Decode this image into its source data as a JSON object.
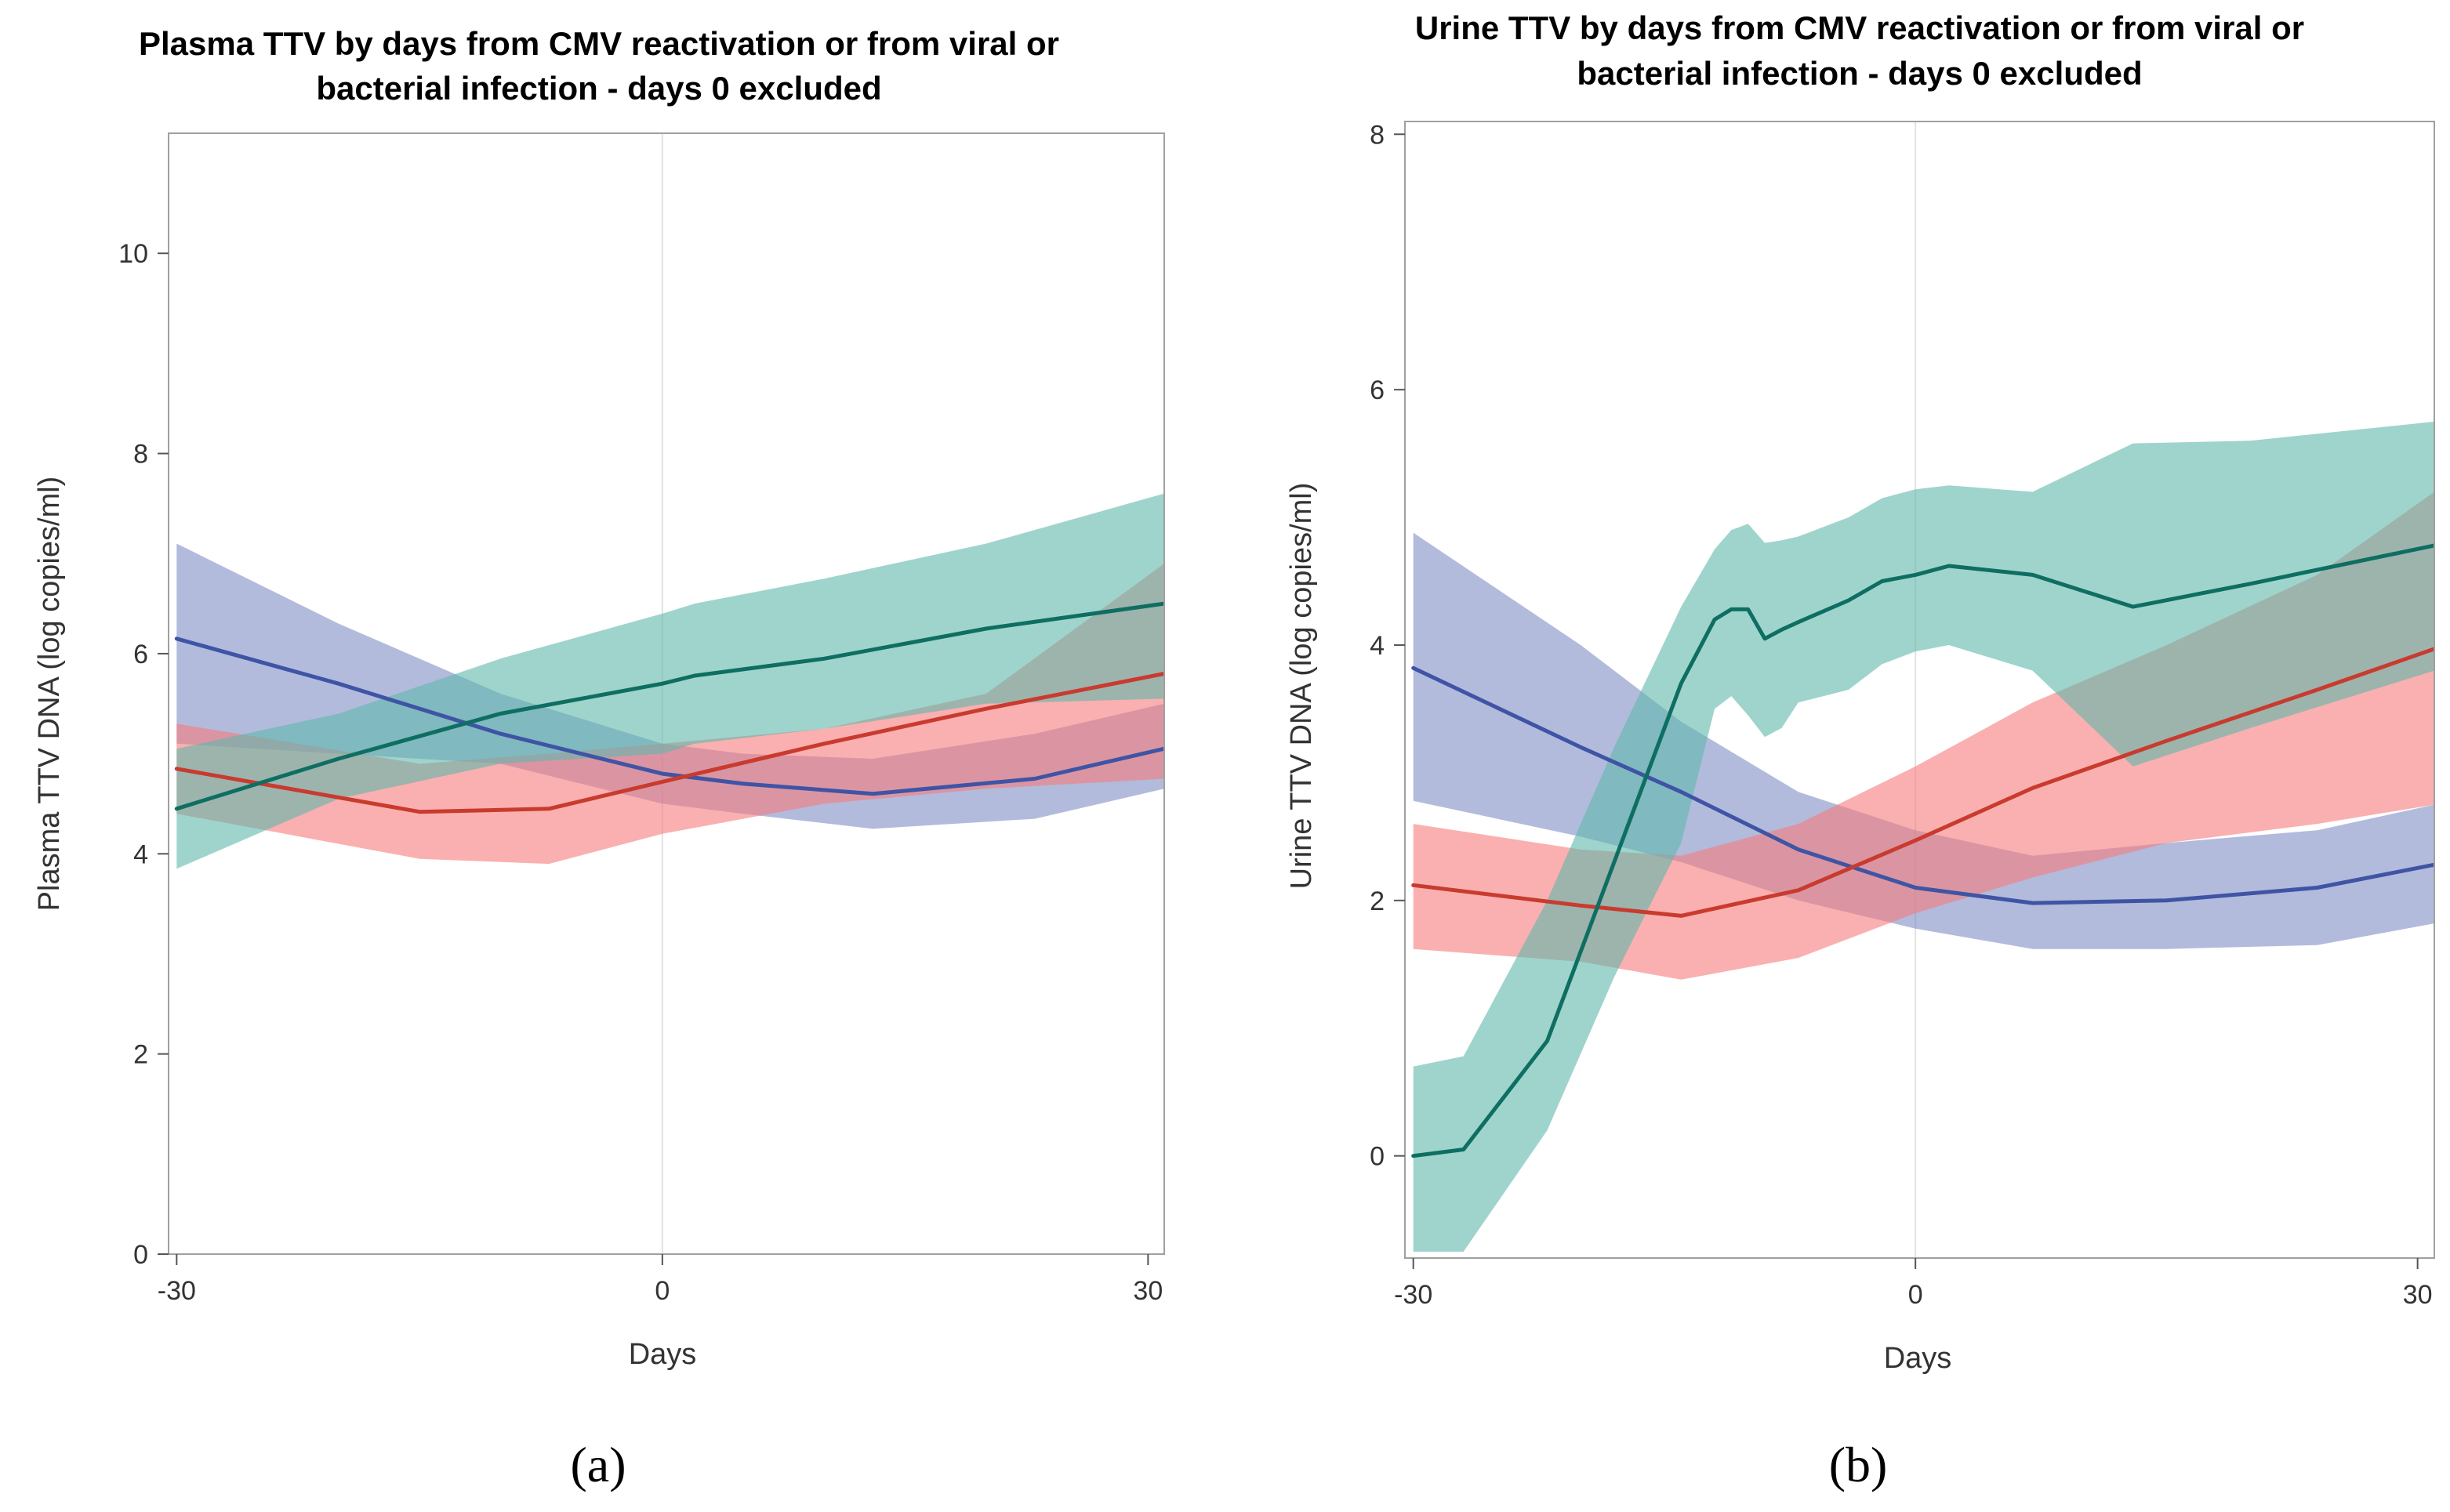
{
  "chart_data": [
    {
      "type": "line",
      "panel_label": "(a)",
      "title_line1": "Plasma TTV by days from CMV reactivation or from viral or",
      "title_line2": "bacterial infection - days 0 excluded",
      "xlabel": "Days",
      "ylabel": "Plasma TTV DNA (log copies/ml)",
      "xlim": [
        -30.5,
        31
      ],
      "ylim": [
        0,
        11.2
      ],
      "xticks": [
        -30,
        0,
        30
      ],
      "yticks": [
        0,
        2,
        4,
        6,
        8,
        10
      ],
      "reference_line_x": 0,
      "series": [
        {
          "name": "blue",
          "line_color": "#3f54a5",
          "band_color": "#7f8dc4",
          "x": [
            -30,
            -20,
            -10,
            0,
            5,
            13,
            23,
            31
          ],
          "y": [
            6.15,
            5.7,
            5.2,
            4.8,
            4.7,
            4.6,
            4.75,
            5.05
          ],
          "lower": [
            5.1,
            5.0,
            4.9,
            4.5,
            4.4,
            4.25,
            4.35,
            4.65
          ],
          "upper": [
            7.1,
            6.3,
            5.6,
            5.1,
            5.0,
            4.95,
            5.2,
            5.5
          ]
        },
        {
          "name": "red",
          "line_color": "#c83b2e",
          "band_color": "#f67b7b",
          "x": [
            -30,
            -15,
            -7,
            0,
            10,
            20,
            31
          ],
          "y": [
            4.85,
            4.42,
            4.45,
            4.72,
            5.1,
            5.45,
            5.8
          ],
          "lower": [
            4.4,
            3.95,
            3.9,
            4.2,
            4.5,
            4.65,
            4.75
          ],
          "upper": [
            5.3,
            4.9,
            5.0,
            5.1,
            5.25,
            5.6,
            6.9
          ]
        },
        {
          "name": "green",
          "line_color": "#0e6e62",
          "band_color": "#5fb7ac",
          "x": [
            -30,
            -20,
            -10,
            0,
            2,
            10,
            20,
            31
          ],
          "y": [
            4.45,
            4.95,
            5.4,
            5.7,
            5.78,
            5.95,
            6.25,
            6.5
          ],
          "lower": [
            3.85,
            4.55,
            4.9,
            5.0,
            5.1,
            5.25,
            5.5,
            5.55
          ],
          "upper": [
            5.05,
            5.4,
            5.95,
            6.4,
            6.5,
            6.75,
            7.1,
            7.6
          ]
        }
      ]
    },
    {
      "type": "line",
      "panel_label": "(b)",
      "title_line1": "Urine TTV by days from CMV reactivation or from viral or",
      "title_line2": "bacterial infection - days 0 excluded",
      "xlabel": "Days",
      "ylabel": "Urine TTV DNA (log copies/ml)",
      "xlim": [
        -30.5,
        31
      ],
      "ylim": [
        -0.8,
        8.1
      ],
      "xticks": [
        -30,
        0,
        30
      ],
      "yticks": [
        0,
        2,
        4,
        6,
        8
      ],
      "reference_line_x": 0,
      "series": [
        {
          "name": "blue",
          "line_color": "#3f54a5",
          "band_color": "#7f8dc4",
          "x": [
            -30,
            -20,
            -14,
            -7,
            0,
            7,
            15,
            24,
            31
          ],
          "y": [
            3.82,
            3.2,
            2.85,
            2.4,
            2.1,
            1.98,
            2.0,
            2.1,
            2.28
          ],
          "lower": [
            2.78,
            2.5,
            2.3,
            2.0,
            1.78,
            1.62,
            1.62,
            1.65,
            1.82
          ],
          "upper": [
            4.88,
            4.0,
            3.4,
            2.85,
            2.55,
            2.35,
            2.45,
            2.55,
            2.75
          ]
        },
        {
          "name": "red",
          "line_color": "#c83b2e",
          "band_color": "#f67b7b",
          "x": [
            -30,
            -20,
            -14,
            -7,
            0,
            7,
            15,
            24,
            31
          ],
          "y": [
            2.12,
            1.96,
            1.88,
            2.08,
            2.47,
            2.88,
            3.25,
            3.65,
            3.97
          ],
          "lower": [
            1.62,
            1.52,
            1.38,
            1.55,
            1.9,
            2.18,
            2.45,
            2.6,
            2.75
          ],
          "upper": [
            2.6,
            2.4,
            2.35,
            2.6,
            3.05,
            3.55,
            4.0,
            4.55,
            5.2
          ]
        },
        {
          "name": "green",
          "line_color": "#0e6e62",
          "band_color": "#5fb7ac",
          "x": [
            -30,
            -27,
            -22,
            -18,
            -14,
            -12,
            -11,
            -10,
            -9,
            -8,
            -7,
            -4,
            -2,
            0,
            2,
            7,
            13,
            20,
            31
          ],
          "y": [
            0.0,
            0.05,
            0.9,
            2.3,
            3.7,
            4.2,
            4.28,
            4.28,
            4.05,
            4.12,
            4.18,
            4.35,
            4.5,
            4.55,
            4.62,
            4.55,
            4.3,
            4.48,
            4.78
          ],
          "lower": [
            -0.75,
            -0.75,
            0.2,
            1.4,
            2.45,
            3.5,
            3.6,
            3.45,
            3.28,
            3.35,
            3.55,
            3.65,
            3.85,
            3.95,
            4.0,
            3.8,
            3.05,
            3.35,
            3.8
          ],
          "upper": [
            0.7,
            0.78,
            2.0,
            3.2,
            4.3,
            4.75,
            4.9,
            4.95,
            4.8,
            4.82,
            4.85,
            5.0,
            5.15,
            5.22,
            5.25,
            5.2,
            5.58,
            5.6,
            5.75
          ]
        }
      ]
    }
  ]
}
